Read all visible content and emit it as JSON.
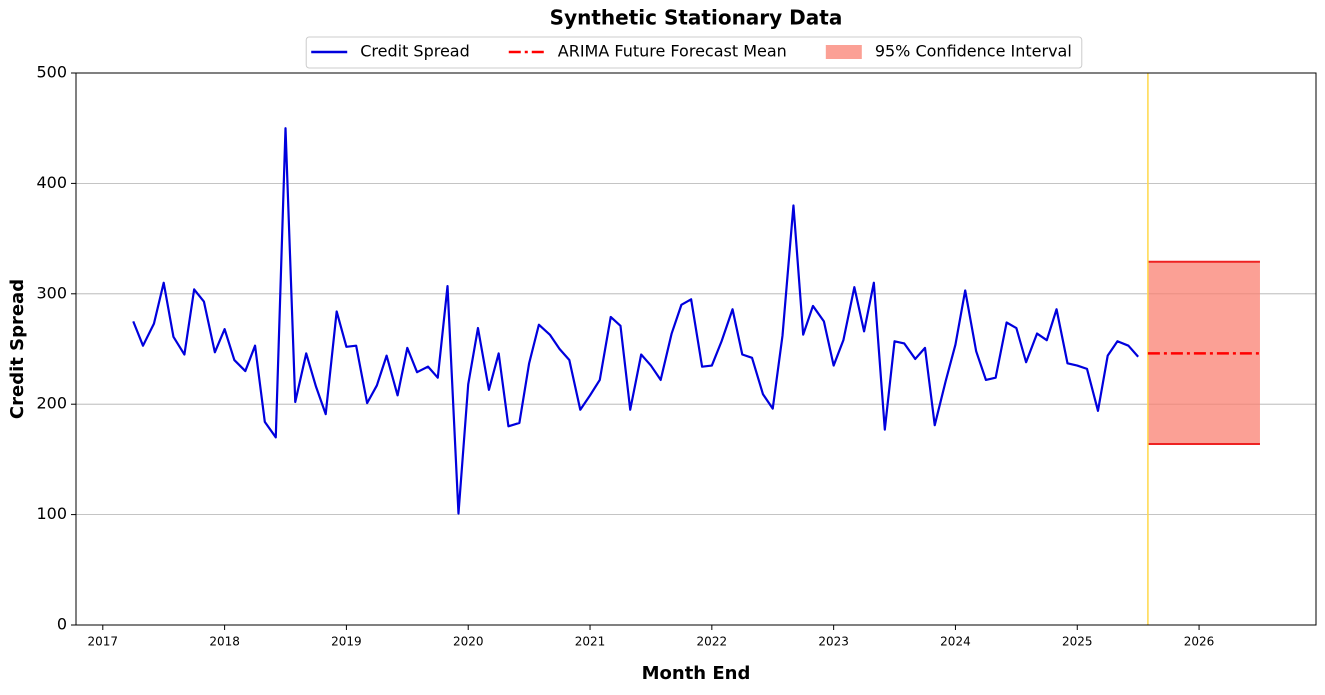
{
  "chart_data": {
    "type": "line",
    "title": "Synthetic Stationary Data",
    "x_label": "Month End",
    "y_label": "Credit Spread",
    "xlim": [
      2016.78,
      2026.96
    ],
    "xticks": [
      2017,
      2018,
      2019,
      2020,
      2021,
      2022,
      2023,
      2024,
      2025,
      2026
    ],
    "ylim": [
      0,
      500
    ],
    "yticks": [
      0,
      100,
      200,
      300,
      400,
      500
    ],
    "grid": "y",
    "legend": "top-center",
    "series": [
      {
        "name": "Credit Spread",
        "color": "#0000dd",
        "style": "solid",
        "x": [
          2017.25,
          2017.33,
          2017.42,
          2017.5,
          2017.58,
          2017.67,
          2017.75,
          2017.83,
          2017.92,
          2018.0,
          2018.08,
          2018.17,
          2018.25,
          2018.33,
          2018.42,
          2018.5,
          2018.58,
          2018.67,
          2018.75,
          2018.83,
          2018.92,
          2019.0,
          2019.08,
          2019.17,
          2019.25,
          2019.33,
          2019.42,
          2019.5,
          2019.58,
          2019.67,
          2019.75,
          2019.83,
          2019.92,
          2020.0,
          2020.08,
          2020.17,
          2020.25,
          2020.33,
          2020.42,
          2020.5,
          2020.58,
          2020.67,
          2020.75,
          2020.83,
          2020.92,
          2021.0,
          2021.08,
          2021.17,
          2021.25,
          2021.33,
          2021.42,
          2021.5,
          2021.58,
          2021.67,
          2021.75,
          2021.83,
          2021.92,
          2022.0,
          2022.08,
          2022.17,
          2022.25,
          2022.33,
          2022.42,
          2022.5,
          2022.58,
          2022.67,
          2022.75,
          2022.83,
          2022.92,
          2023.0,
          2023.08,
          2023.17,
          2023.25,
          2023.33,
          2023.42,
          2023.5,
          2023.58,
          2023.67,
          2023.75,
          2023.83,
          2023.92,
          2024.0,
          2024.08,
          2024.17,
          2024.25,
          2024.33,
          2024.42,
          2024.5,
          2024.58,
          2024.67,
          2024.75,
          2024.83,
          2024.92,
          2025.0,
          2025.08,
          2025.17,
          2025.25,
          2025.33,
          2025.42,
          2025.5
        ],
        "values": [
          275,
          253,
          273,
          310,
          261,
          245,
          304,
          293,
          247,
          268,
          240,
          230,
          253,
          184,
          170,
          450,
          202,
          246,
          216,
          191,
          284,
          252,
          253,
          201,
          217,
          244,
          208,
          251,
          229,
          234,
          224,
          307,
          101,
          218,
          269,
          213,
          246,
          180,
          183,
          237,
          272,
          263,
          250,
          240,
          195,
          208,
          222,
          279,
          271,
          195,
          245,
          235,
          222,
          264,
          290,
          295,
          234,
          235,
          257,
          286,
          245,
          242,
          209,
          196,
          262,
          380,
          263,
          289,
          275,
          235,
          258,
          306,
          266,
          310,
          177,
          257,
          255,
          241,
          251,
          181,
          221,
          254,
          303,
          248,
          222,
          224,
          274,
          269,
          238,
          264,
          258,
          286,
          237,
          235,
          232,
          194,
          244,
          257,
          253,
          243
        ]
      },
      {
        "name": "ARIMA Future Forecast Mean",
        "color": "#ff0000",
        "style": "dashdot",
        "x": [
          2025.58,
          2025.67,
          2025.75,
          2025.83,
          2025.92,
          2026.0,
          2026.08,
          2026.17,
          2026.25,
          2026.33,
          2026.42,
          2026.5
        ],
        "values": [
          246,
          246,
          246,
          246,
          246,
          246,
          246,
          246,
          246,
          246,
          246,
          246
        ]
      }
    ],
    "band": {
      "name": "95% Confidence Interval",
      "color": "#fa8072",
      "edge_color": "#ee2222",
      "lower": [
        164,
        164,
        164,
        164,
        164,
        164,
        164,
        164,
        164,
        164,
        164,
        164
      ],
      "upper": [
        329,
        329,
        329,
        329,
        329,
        329,
        329,
        329,
        329,
        329,
        329,
        329
      ]
    },
    "vline": {
      "x": 2025.58,
      "color": "#ffd84a"
    }
  }
}
